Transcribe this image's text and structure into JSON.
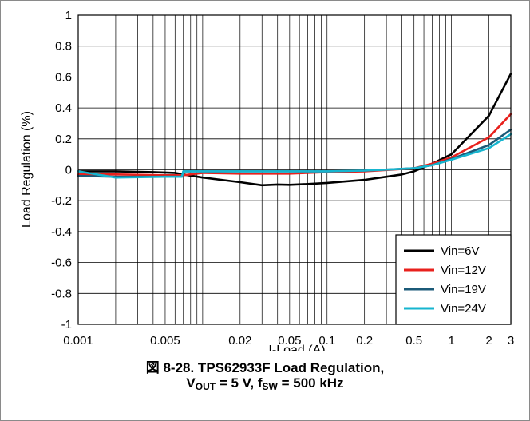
{
  "chart_data": {
    "type": "line",
    "xscale": "log",
    "xlim": [
      0.001,
      3
    ],
    "ylim": [
      -1,
      1
    ],
    "xlabel": "I-Load (A)",
    "ylabel": "Load Regulation (%)",
    "xticks": [
      0.001,
      0.005,
      0.02,
      0.05,
      0.1,
      0.2,
      0.5,
      1,
      2,
      3
    ],
    "xtick_labels": [
      "0.001",
      "0.005",
      "0.02",
      "0.05",
      "0.1",
      "0.2",
      "0.5",
      "1",
      "2",
      "3"
    ],
    "yticks": [
      -1,
      -0.8,
      -0.6,
      -0.4,
      -0.2,
      0,
      0.2,
      0.4,
      0.6,
      0.8,
      1
    ],
    "ytick_labels": [
      "-1",
      "-0.8",
      "-0.6",
      "-0.4",
      "-0.2",
      "0",
      "0.2",
      "0.4",
      "0.6",
      "0.8",
      "1"
    ],
    "grid": true,
    "legend_position": "bottom-right",
    "series": [
      {
        "name": "Vin=6V",
        "color": "#000000",
        "x": [
          0.001,
          0.002,
          0.004,
          0.006,
          0.007,
          0.01,
          0.02,
          0.03,
          0.04,
          0.05,
          0.07,
          0.1,
          0.2,
          0.3,
          0.4,
          0.5,
          0.7,
          1,
          2,
          3
        ],
        "y": [
          -0.01,
          -0.01,
          -0.015,
          -0.02,
          -0.03,
          -0.05,
          -0.08,
          -0.1,
          -0.095,
          -0.097,
          -0.092,
          -0.085,
          -0.065,
          -0.045,
          -0.03,
          -0.01,
          0.04,
          0.1,
          0.35,
          0.62
        ]
      },
      {
        "name": "Vin=12V",
        "color": "#e8211d",
        "x": [
          0.001,
          0.002,
          0.005,
          0.007,
          0.01,
          0.02,
          0.05,
          0.1,
          0.2,
          0.5,
          0.7,
          1,
          2,
          3
        ],
        "y": [
          -0.03,
          -0.03,
          -0.035,
          -0.035,
          -0.02,
          -0.025,
          -0.025,
          -0.015,
          -0.01,
          0.01,
          0.04,
          0.08,
          0.21,
          0.36
        ]
      },
      {
        "name": "Vin=19V",
        "color": "#1b5a78",
        "x": [
          0.001,
          0.002,
          0.005,
          0.0068,
          0.007,
          0.01,
          0.02,
          0.05,
          0.1,
          0.2,
          0.5,
          0.7,
          1,
          2,
          3
        ],
        "y": [
          -0.04,
          -0.045,
          -0.045,
          -0.045,
          -0.01,
          -0.01,
          -0.01,
          -0.01,
          -0.01,
          -0.005,
          0.01,
          0.03,
          0.07,
          0.16,
          0.26
        ]
      },
      {
        "name": "Vin=24V",
        "color": "#16b5cf",
        "x": [
          0.001,
          0.002,
          0.005,
          0.0068,
          0.007,
          0.01,
          0.02,
          0.05,
          0.1,
          0.2,
          0.5,
          0.7,
          1,
          2,
          3
        ],
        "y": [
          -0.01,
          -0.05,
          -0.045,
          -0.045,
          -0.01,
          -0.01,
          -0.01,
          -0.01,
          -0.01,
          -0.005,
          0.01,
          0.03,
          0.065,
          0.14,
          0.23
        ]
      }
    ]
  },
  "caption": {
    "line1": "図 8-28. TPS62933F Load Regulation,",
    "vout_prefix": "V",
    "vout_sub": "OUT",
    "vout_value": " = 5 V, f",
    "fsw_sub": "SW",
    "fsw_value": " = 500 kHz"
  }
}
